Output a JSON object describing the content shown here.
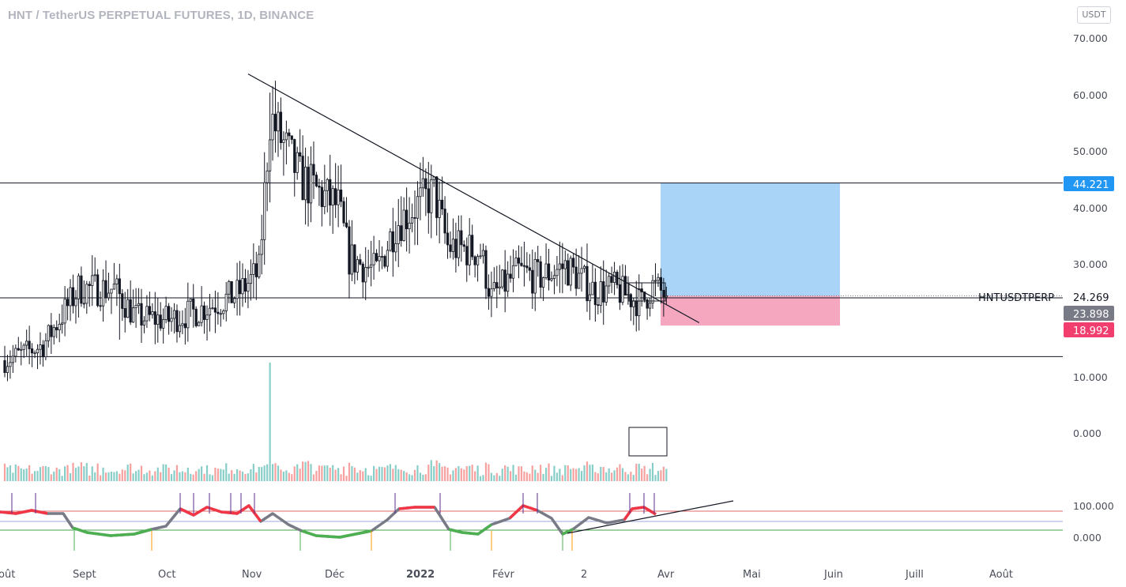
{
  "header": {
    "title": "HNT / TetherUS PERPETUAL FUTURES, 1D, BINANCE",
    "currency": "USDT"
  },
  "chart_data": {
    "type": "candlestick",
    "price_axis_labels": [
      "70.000",
      "60.000",
      "50.000",
      "40.000",
      "30.000",
      "24.269",
      "23.898",
      "18.992",
      "10.000",
      "0.000"
    ],
    "price_ticks": [
      70,
      60,
      50,
      40,
      30,
      10
    ],
    "volume_axis_labels": [
      "0.000"
    ],
    "indicator_axis_labels": [
      "100.000",
      "0.000"
    ],
    "x_labels": [
      "oût",
      "Sept",
      "Oct",
      "Nov",
      "Déc",
      "2022",
      "Févr",
      "2",
      "Avr",
      "Mai",
      "Juin",
      "Juill",
      "Août"
    ],
    "symbol": "HNTUSDTPERP",
    "last_price": "24.269",
    "position": {
      "target": "44.221",
      "entry": "23.898",
      "stop": "18.992"
    },
    "horizontal_levels": [
      44.221,
      23.898,
      13.5
    ],
    "trendline": {
      "from_date": "2021-10-29",
      "from_price": 63.5,
      "to_date": "2022-04-12",
      "to_price": 19.5
    },
    "close_anchors": [
      [
        "2021-08-01",
        12.8
      ],
      [
        "2021-08-15",
        15.5
      ],
      [
        "2021-08-28",
        25.5
      ],
      [
        "2021-09-10",
        25.5
      ],
      [
        "2021-09-18",
        20.5
      ],
      [
        "2021-09-30",
        20.0
      ],
      [
        "2021-10-10",
        21.5
      ],
      [
        "2021-10-25",
        24.5
      ],
      [
        "2021-11-02",
        28.5
      ],
      [
        "2021-11-06",
        56.0
      ],
      [
        "2021-11-10",
        52.0
      ],
      [
        "2021-11-17",
        45.0
      ],
      [
        "2021-12-01",
        40.0
      ],
      [
        "2021-12-05",
        31.0
      ],
      [
        "2021-12-15",
        28.5
      ],
      [
        "2021-12-22",
        37.0
      ],
      [
        "2021-12-29",
        40.0
      ],
      [
        "2022-01-05",
        42.5
      ],
      [
        "2022-01-10",
        33.0
      ],
      [
        "2022-01-22",
        32.0
      ],
      [
        "2022-01-26",
        24.0
      ],
      [
        "2022-02-05",
        28.5
      ],
      [
        "2022-02-12",
        27.5
      ],
      [
        "2022-02-22",
        29.5
      ],
      [
        "2022-03-05",
        25.0
      ],
      [
        "2022-03-12",
        25.5
      ],
      [
        "2022-03-22",
        23.0
      ],
      [
        "2022-03-26",
        26.0
      ],
      [
        "2022-03-31",
        24.27
      ]
    ]
  },
  "colors": {
    "up": "#26a69a",
    "down": "#ef5350",
    "candle": "#131722",
    "target_zone": "#a9d4f8",
    "stop_zone": "#f5a7c0",
    "target_badge": "#2196f3",
    "entry_badge": "#787b86",
    "stop_badge": "#f23e6f",
    "indicator_neutral": "#787b86",
    "indicator_high": "#f23645",
    "indicator_low": "#4caf50",
    "indicator_upper": "#e06666",
    "indicator_lower": "#43a047"
  }
}
